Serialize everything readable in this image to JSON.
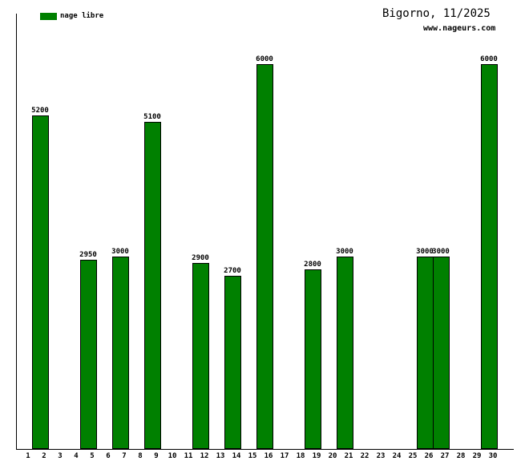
{
  "header": {
    "title": "Bigorno, 11/2025",
    "subtitle": "www.nageurs.com"
  },
  "legend": {
    "label": "nage libre",
    "color": "#008000"
  },
  "colors": {
    "bar_fill": "#008000",
    "bar_border": "#000000",
    "axis": "#000000",
    "background": "#ffffff"
  },
  "chart_data": {
    "type": "bar",
    "title": "Bigorno, 11/2025",
    "annotation": "www.nageurs.com",
    "xlabel": "",
    "ylabel": "",
    "categories": [
      1,
      2,
      3,
      4,
      5,
      6,
      7,
      8,
      9,
      10,
      11,
      12,
      13,
      14,
      15,
      16,
      17,
      18,
      19,
      20,
      21,
      22,
      23,
      24,
      25,
      26,
      27,
      28,
      29,
      30
    ],
    "series": [
      {
        "name": "nage libre",
        "color": "#008000",
        "values": [
          null,
          5200,
          null,
          null,
          2950,
          null,
          3000,
          null,
          5100,
          null,
          null,
          2900,
          null,
          2700,
          null,
          6000,
          null,
          null,
          2800,
          null,
          3000,
          null,
          null,
          null,
          null,
          3000,
          3000,
          null,
          null,
          6000
        ]
      }
    ],
    "ylim": [
      0,
      6000
    ],
    "grid": false,
    "legend_position": "top-left",
    "bar_value_labels": true
  }
}
